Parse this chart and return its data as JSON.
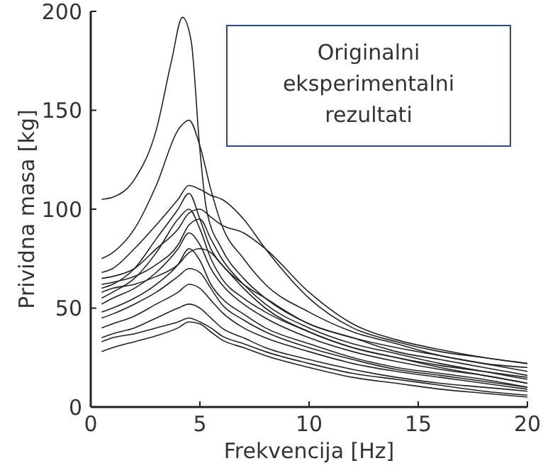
{
  "chart_data": {
    "type": "line",
    "xlabel": "Frekvencija [Hz]",
    "ylabel": "Prividna masa [kg]",
    "annotations": [
      "Originalni eksperimentalni rezultati"
    ],
    "x": [
      0.5,
      1,
      2,
      3,
      4,
      4.5,
      5,
      5.5,
      6,
      7,
      8,
      10,
      12,
      14,
      16,
      18,
      20
    ],
    "xlim": [
      0,
      20
    ],
    "xticks": [
      0,
      5,
      10,
      15,
      20
    ],
    "ylim": [
      0,
      200
    ],
    "yticks": [
      0,
      50,
      100,
      150,
      200
    ],
    "grid": false,
    "marker": "none",
    "line_style": "solid",
    "series": [
      {
        "color": "#222222",
        "x": [
          0.5,
          1,
          2,
          3,
          3.7,
          4.2,
          4.6,
          5,
          5.3,
          6,
          7,
          8,
          10,
          12,
          14,
          16,
          18,
          20
        ],
        "values": [
          105,
          106,
          115,
          140,
          175,
          197,
          185,
          130,
          100,
          80,
          65,
          55,
          42,
          35,
          30,
          26,
          22,
          20
        ]
      },
      {
        "color": "#222222",
        "values": [
          75,
          78,
          90,
          112,
          140,
          145,
          132,
          110,
          92,
          75,
          62,
          48,
          38,
          32,
          26,
          22,
          18
        ]
      },
      {
        "color": "#222222",
        "values": [
          68,
          70,
          80,
          92,
          105,
          112,
          110,
          107,
          105,
          95,
          80,
          55,
          40,
          33,
          28,
          25,
          22
        ]
      },
      {
        "color": "#222222",
        "values": [
          60,
          62,
          70,
          85,
          100,
          108,
          95,
          80,
          72,
          62,
          55,
          42,
          35,
          28,
          24,
          20,
          16
        ]
      },
      {
        "color": "#222222",
        "values": [
          55,
          58,
          65,
          78,
          95,
          100,
          90,
          75,
          65,
          55,
          48,
          38,
          30,
          25,
          21,
          18,
          15
        ]
      },
      {
        "color": "#222222",
        "values": [
          62,
          63,
          66,
          72,
          82,
          92,
          95,
          85,
          75,
          62,
          52,
          40,
          32,
          27,
          22,
          18,
          14
        ]
      },
      {
        "color": "#222222",
        "values": [
          52,
          55,
          60,
          68,
          80,
          88,
          82,
          70,
          62,
          52,
          45,
          35,
          28,
          23,
          19,
          16,
          12
        ]
      },
      {
        "color": "#222222",
        "values": [
          58,
          60,
          62,
          66,
          72,
          78,
          80,
          78,
          72,
          60,
          50,
          38,
          30,
          25,
          20,
          16,
          12
        ]
      },
      {
        "color": "#222222",
        "values": [
          48,
          50,
          55,
          62,
          72,
          80,
          74,
          62,
          55,
          47,
          40,
          32,
          25,
          20,
          17,
          14,
          10
        ]
      },
      {
        "color": "#222222",
        "values": [
          45,
          47,
          52,
          58,
          66,
          70,
          68,
          60,
          52,
          44,
          38,
          30,
          24,
          19,
          16,
          13,
          10
        ]
      },
      {
        "color": "#222222",
        "values": [
          40,
          42,
          46,
          52,
          58,
          62,
          60,
          54,
          48,
          40,
          35,
          28,
          22,
          18,
          15,
          12,
          9
        ]
      },
      {
        "color": "#222222",
        "values": [
          35,
          37,
          40,
          45,
          50,
          52,
          50,
          45,
          40,
          35,
          30,
          24,
          19,
          15,
          12,
          10,
          8
        ]
      },
      {
        "color": "#222222",
        "values": [
          33,
          35,
          37,
          40,
          43,
          45,
          43,
          40,
          36,
          32,
          28,
          22,
          17,
          14,
          11,
          8,
          6
        ]
      },
      {
        "color": "#222222",
        "values": [
          28,
          30,
          33,
          36,
          40,
          43,
          42,
          38,
          34,
          30,
          26,
          20,
          15,
          12,
          9,
          7,
          5
        ]
      },
      {
        "color": "#222222",
        "values": [
          65,
          66,
          70,
          80,
          90,
          98,
          100,
          96,
          92,
          88,
          80,
          58,
          42,
          34,
          29,
          25,
          22
        ]
      }
    ]
  }
}
